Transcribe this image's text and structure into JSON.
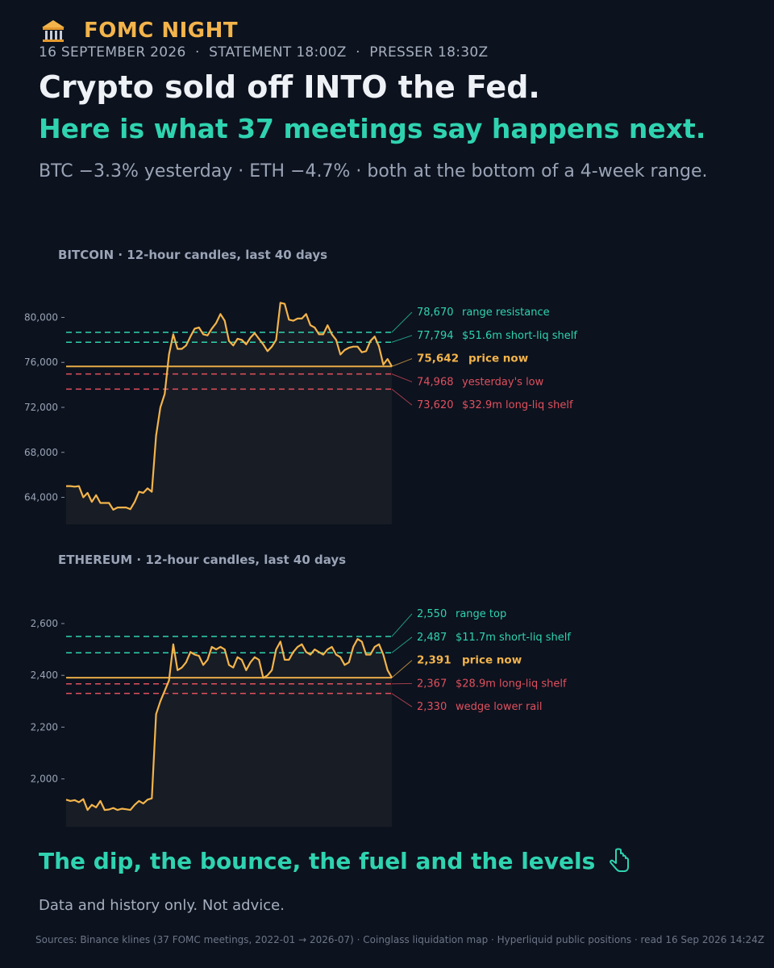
{
  "header": {
    "icon": "bank-building-icon",
    "kicker": "FOMC NIGHT",
    "dateline": "16 SEPTEMBER 2026  ·  STATEMENT 18:00Z  ·  PRESSER 18:30Z",
    "headline": "Crypto sold off INTO the Fed.",
    "subheadline": "Here is what 37 meetings say happens next.",
    "summary": "BTC −3.3% yesterday · ETH −4.7% · both at the bottom of a 4-week range."
  },
  "colors": {
    "background": "#0c121e",
    "price_line": "#f3b44b",
    "resistance": "#2fd3b0",
    "support": "#e0505e",
    "muted": "#9aa4b6"
  },
  "chart_data": [
    {
      "type": "line",
      "title": "BITCOIN · 12-hour candles, last 40 days",
      "ylim": [
        61600,
        82400
      ],
      "yticks": [
        64000,
        68000,
        72000,
        76000,
        80000
      ],
      "ytick_labels": [
        "64,000",
        "68,000",
        "72,000",
        "76,000",
        "80,000"
      ],
      "grid": false,
      "series": [
        {
          "values": [
            65000,
            65000,
            64950,
            65000,
            64000,
            64400,
            63600,
            64200,
            63500,
            63500,
            63500,
            62900,
            63100,
            63100,
            63100,
            62950,
            63600,
            64500,
            64400,
            64800,
            64500,
            69500,
            72000,
            73200,
            76700,
            78500,
            77200,
            77200,
            77500,
            78300,
            79000,
            79100,
            78500,
            78400,
            79000,
            79500,
            80300,
            79700,
            77900,
            77500,
            78100,
            78000,
            77600,
            78200,
            78600,
            78100,
            77600,
            77000,
            77400,
            78000,
            81300,
            81200,
            79800,
            79700,
            79900,
            79900,
            80300,
            79300,
            79100,
            78500,
            78500,
            79300,
            78500,
            78000,
            76700,
            77100,
            77300,
            77400,
            77400,
            76900,
            77000,
            77900,
            78300,
            77400,
            75800,
            76300,
            75642
          ]
        }
      ],
      "levels": [
        {
          "value": 78670,
          "value_label": "78,670",
          "label": "range resistance",
          "kind": "resistance"
        },
        {
          "value": 77794,
          "value_label": "77,794",
          "label": "$51.6m short-liq shelf",
          "kind": "resistance"
        },
        {
          "value": 75642,
          "value_label": "75,642",
          "label": "price now",
          "kind": "price"
        },
        {
          "value": 74968,
          "value_label": "74,968",
          "label": "yesterday's low",
          "kind": "support"
        },
        {
          "value": 73620,
          "value_label": "73,620",
          "label": "$32.9m long-liq shelf",
          "kind": "support"
        }
      ]
    },
    {
      "type": "line",
      "title": "ETHEREUM · 12-hour candles, last 40 days",
      "ylim": [
        1815,
        2765
      ],
      "yticks": [
        2000,
        2200,
        2400,
        2600
      ],
      "ytick_labels": [
        "2,000",
        "2,200",
        "2,400",
        "2,600"
      ],
      "grid": false,
      "series": [
        {
          "values": [
            1920,
            1915,
            1918,
            1910,
            1922,
            1880,
            1900,
            1890,
            1915,
            1880,
            1882,
            1888,
            1880,
            1885,
            1883,
            1880,
            1900,
            1915,
            1905,
            1920,
            1925,
            2250,
            2300,
            2340,
            2380,
            2520,
            2420,
            2430,
            2450,
            2490,
            2480,
            2475,
            2440,
            2460,
            2510,
            2500,
            2510,
            2500,
            2440,
            2430,
            2470,
            2460,
            2420,
            2450,
            2470,
            2460,
            2390,
            2400,
            2420,
            2500,
            2530,
            2460,
            2460,
            2490,
            2510,
            2520,
            2490,
            2480,
            2500,
            2490,
            2480,
            2500,
            2510,
            2480,
            2470,
            2440,
            2450,
            2510,
            2540,
            2530,
            2480,
            2480,
            2510,
            2520,
            2480,
            2420,
            2391
          ]
        }
      ],
      "levels": [
        {
          "value": 2550,
          "value_label": "2,550",
          "label": "range top",
          "kind": "resistance"
        },
        {
          "value": 2487,
          "value_label": "2,487",
          "label": "$11.7m short-liq shelf",
          "kind": "resistance"
        },
        {
          "value": 2391,
          "value_label": "2,391",
          "label": "price now",
          "kind": "price"
        },
        {
          "value": 2367,
          "value_label": "2,367",
          "label": "$28.9m long-liq shelf",
          "kind": "support"
        },
        {
          "value": 2330,
          "value_label": "2,330",
          "label": "wedge lower rail",
          "kind": "support"
        }
      ]
    }
  ],
  "footer": {
    "title": "The dip, the bounce, the fuel and the levels",
    "icon": "pointing-down-hand-icon",
    "disclaimer": "Data and history only. Not advice.",
    "sources": "Sources: Binance klines (37 FOMC meetings, 2022-01 → 2026-07) · Coinglass liquidation map · Hyperliquid public positions · read 16 Sep 2026 14:24Z"
  }
}
